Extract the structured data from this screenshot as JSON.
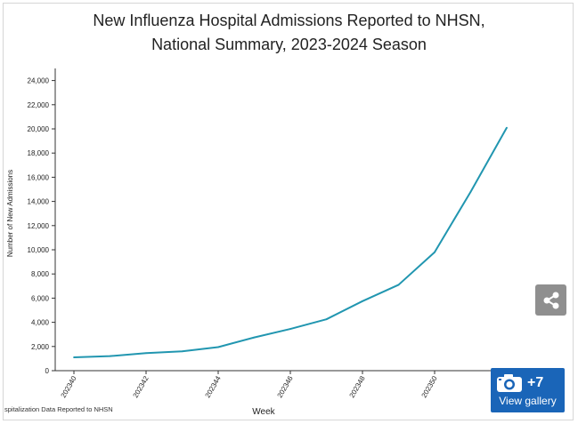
{
  "chart_data": {
    "type": "line",
    "title_lines": [
      "New Influenza Hospital Admissions Reported to NHSN,",
      "National Summary, 2023-2024 Season"
    ],
    "xlabel": "Week",
    "ylabel": "Number of New Admissions",
    "x": [
      202340,
      202341,
      202342,
      202343,
      202344,
      202345,
      202346,
      202347,
      202348,
      202349,
      202350,
      202351,
      202352
    ],
    "x_tick_labels": [
      "202340",
      "202342",
      "202344",
      "202346",
      "202348",
      "202350"
    ],
    "y_ticks": [
      0,
      2000,
      4000,
      6000,
      8000,
      10000,
      12000,
      14000,
      16000,
      18000,
      20000,
      22000,
      24000
    ],
    "y_tick_labels": [
      "0",
      "2,000",
      "4,000",
      "6,000",
      "8,000",
      "10,000",
      "12,000",
      "14,000",
      "16,000",
      "18,000",
      "20,000",
      "22,000",
      "24,000"
    ],
    "ylim": [
      0,
      25000
    ],
    "grid": false,
    "series": [
      {
        "color": "#2196b0",
        "values": [
          1100,
          1200,
          1450,
          1600,
          1950,
          2750,
          3450,
          4250,
          5750,
          7100,
          9800,
          14800,
          20100
        ]
      }
    ]
  },
  "source_note": "spitalization Data Reported to NHSN",
  "gallery": {
    "count": "+7",
    "label": "View gallery"
  },
  "icons": {
    "share": "share-icon",
    "camera": "camera-icon"
  },
  "colors": {
    "line": "#2196b0",
    "share_bg": "#8f8f8f",
    "gallery_bg": "#1a65b8"
  }
}
